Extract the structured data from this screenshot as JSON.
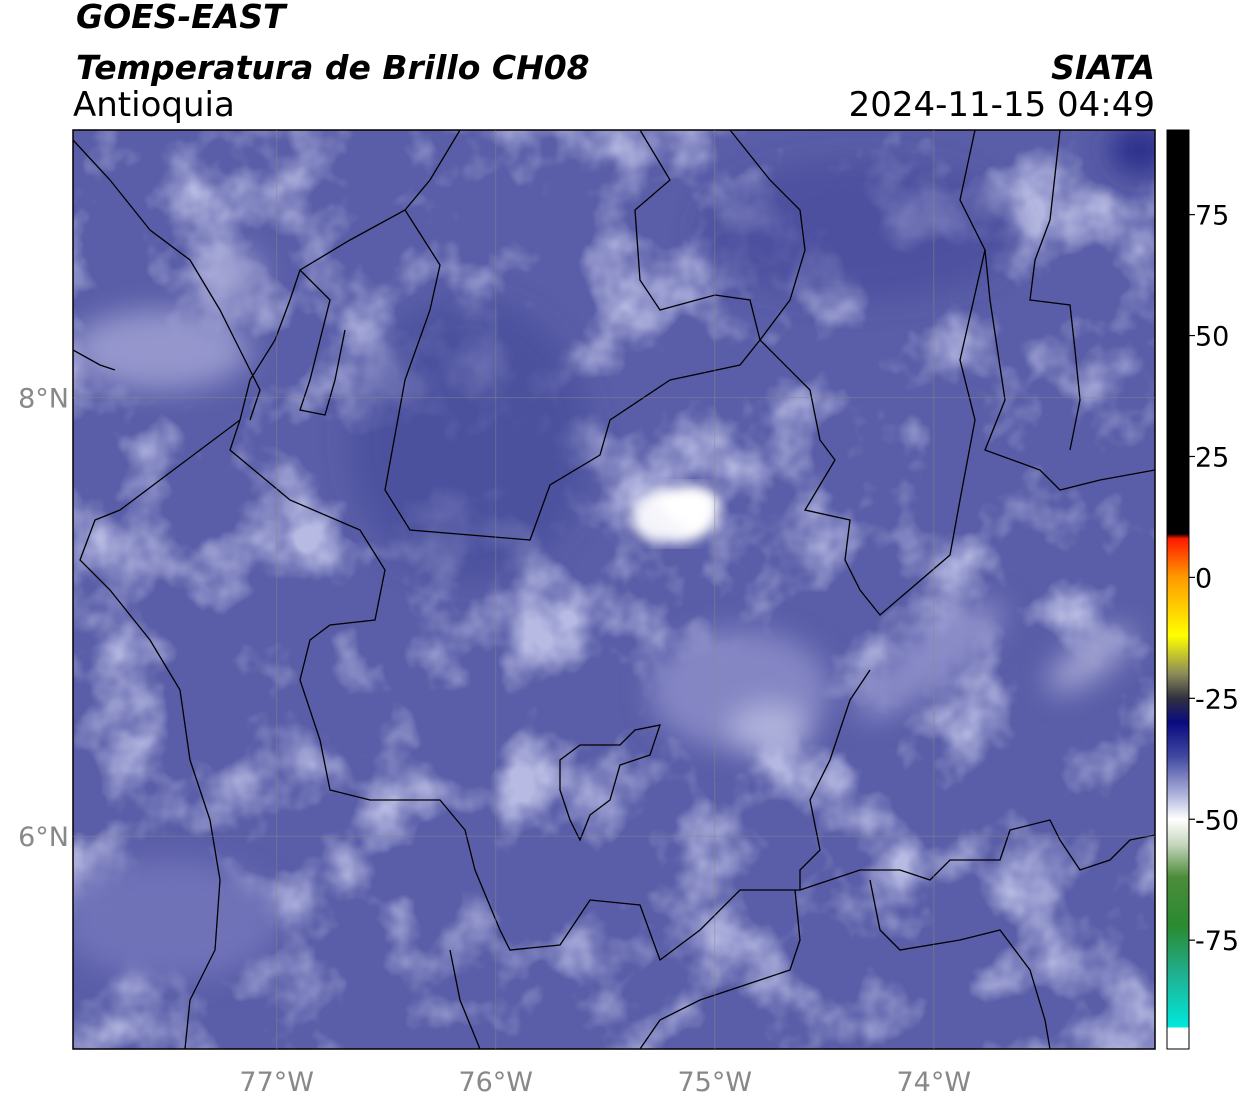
{
  "map": {
    "title": "GOES-EAST",
    "subtitle": "Temperatura de Brillo CH08",
    "region": "Antioquia",
    "source": "SIATA",
    "timestamp": "2024-11-15 04:49",
    "xlim": [
      -77.93,
      -72.99
    ],
    "ylim": [
      5.03,
      9.22
    ],
    "xticks": [
      {
        "value": -77,
        "label": "77°W"
      },
      {
        "value": -76,
        "label": "76°W"
      },
      {
        "value": -75,
        "label": "75°W"
      },
      {
        "value": -74,
        "label": "74°W"
      }
    ],
    "yticks": [
      {
        "value": 6,
        "label": "6°N"
      },
      {
        "value": 8,
        "label": "8°N"
      }
    ],
    "grid": true,
    "colorbar": {
      "lim": [
        -97.5,
        92.5
      ],
      "ticks": [
        -75,
        -50,
        -25,
        0,
        25,
        50,
        75
      ],
      "stops": [
        {
          "value": 92.5,
          "color": "#000000"
        },
        {
          "value": 9,
          "color": "#000000"
        },
        {
          "value": 8,
          "color": "#ff1a00"
        },
        {
          "value": 0,
          "color": "#ff9a00"
        },
        {
          "value": -12,
          "color": "#ffff00"
        },
        {
          "value": -20,
          "color": "#8a8a5a"
        },
        {
          "value": -25,
          "color": "#303040"
        },
        {
          "value": -30,
          "color": "#0a0a80"
        },
        {
          "value": -37,
          "color": "#4048a0"
        },
        {
          "value": -45,
          "color": "#b0b4dc"
        },
        {
          "value": -50,
          "color": "#ffffff"
        },
        {
          "value": -55,
          "color": "#c8d8c0"
        },
        {
          "value": -62,
          "color": "#4c8c3a"
        },
        {
          "value": -72,
          "color": "#2a8a30"
        },
        {
          "value": -82,
          "color": "#20b090"
        },
        {
          "value": -93,
          "color": "#00e8dc"
        },
        {
          "value": -93.1,
          "color": "#ffffff"
        },
        {
          "value": -97.5,
          "color": "#ffffff"
        }
      ]
    }
  }
}
